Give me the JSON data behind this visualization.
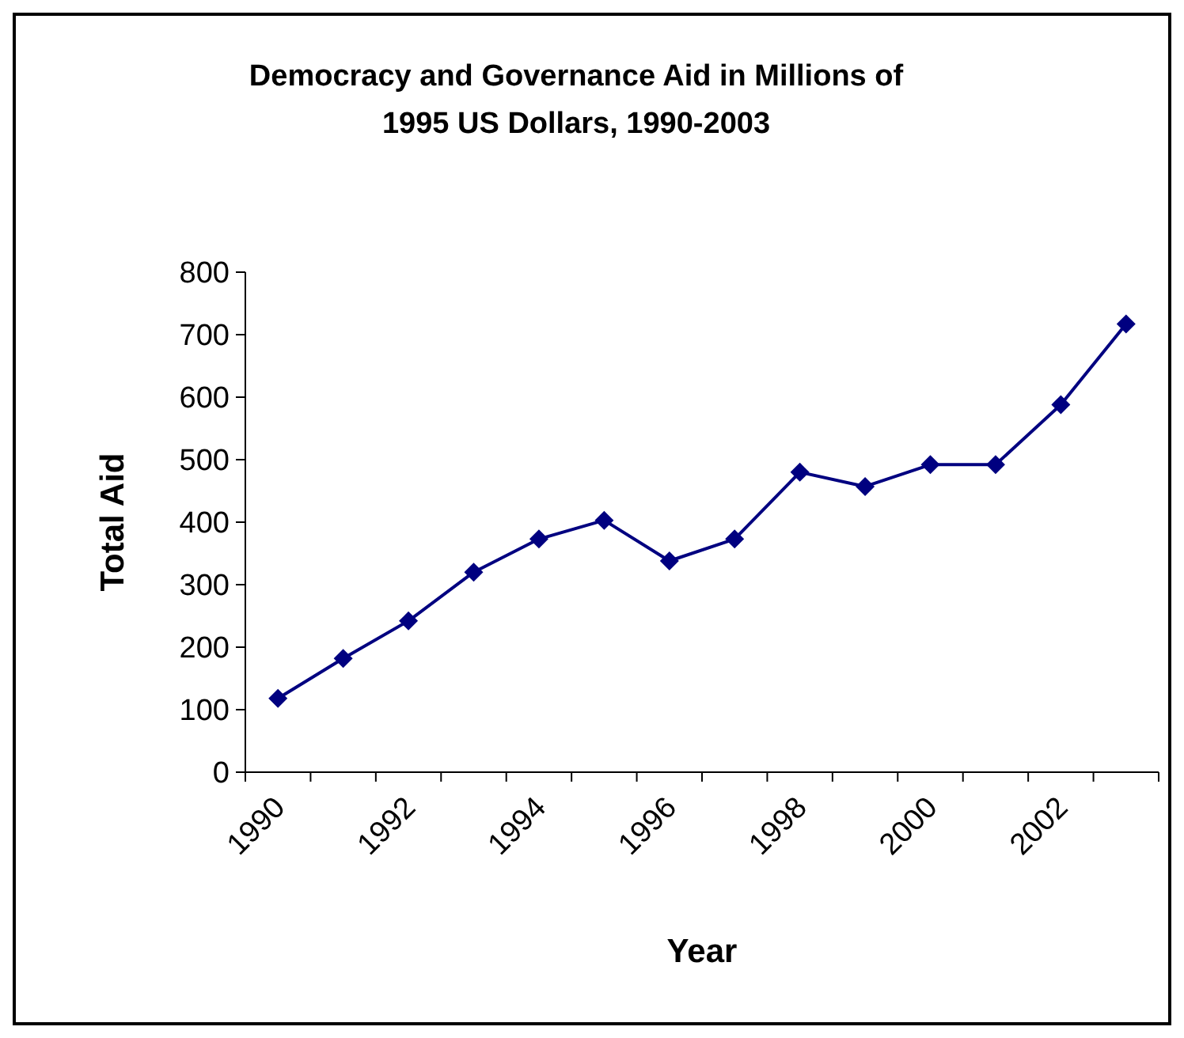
{
  "chart_data": {
    "type": "line",
    "title": "Democracy and Governance Aid in Millions of 1995 US Dollars, 1990-2003",
    "xlabel": "Year",
    "ylabel": "Total Aid",
    "categories": [
      "1990",
      null,
      "1992",
      null,
      "1994",
      null,
      "1996",
      null,
      "1998",
      null,
      "2000",
      null,
      "2002",
      null
    ],
    "series": [
      {
        "color": "#000080",
        "values": [
          118,
          182,
          242,
          320,
          373,
          403,
          338,
          373,
          480,
          457,
          492,
          492,
          588,
          717
        ]
      }
    ],
    "ylim": [
      0,
      800
    ],
    "yticks": [
      0,
      100,
      200,
      300,
      400,
      500,
      600,
      700,
      800
    ],
    "grid": false,
    "marker": "diamond",
    "line_style": "solid"
  }
}
